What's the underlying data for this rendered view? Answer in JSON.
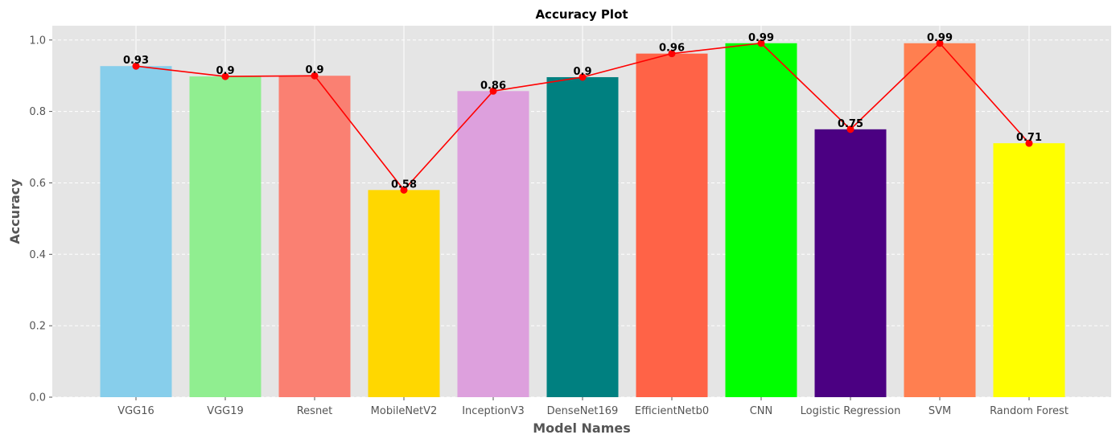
{
  "chart_data": {
    "type": "bar",
    "title": "Accuracy Plot",
    "xlabel": "Model Names",
    "ylabel": "Accuracy",
    "categories": [
      "VGG16",
      "VGG19",
      "Resnet",
      "MobileNetV2",
      "InceptionV3",
      "DenseNet169",
      "EfficientNetb0",
      "CNN",
      "Logistic Regression",
      "SVM",
      "Random Forest"
    ],
    "values": [
      0.927,
      0.898,
      0.9,
      0.58,
      0.857,
      0.896,
      0.962,
      0.991,
      0.75,
      0.991,
      0.711
    ],
    "data_labels": [
      "0.93",
      "0.9",
      "0.9",
      "0.58",
      "0.86",
      "0.9",
      "0.96",
      "0.99",
      "0.75",
      "0.99",
      "0.71"
    ],
    "bar_colors": [
      "#87ceeb",
      "#90ee90",
      "#fa8072",
      "#ffd700",
      "#dda0dd",
      "#008080",
      "#ff6347",
      "#00ff00",
      "#4b0082",
      "#ff7f50",
      "#ffff00"
    ],
    "line_overlay": {
      "color": "#ff0000",
      "marker": "circle"
    },
    "ylim": [
      0,
      1.04
    ],
    "yticks": [
      0.0,
      0.2,
      0.4,
      0.6,
      0.8,
      1.0
    ],
    "ytick_labels": [
      "0.0",
      "0.2",
      "0.4",
      "0.6",
      "0.8",
      "1.0"
    ],
    "grid": true,
    "style": {
      "plot_background": "#e5e5e5",
      "grid_color": "#ffffff"
    }
  }
}
